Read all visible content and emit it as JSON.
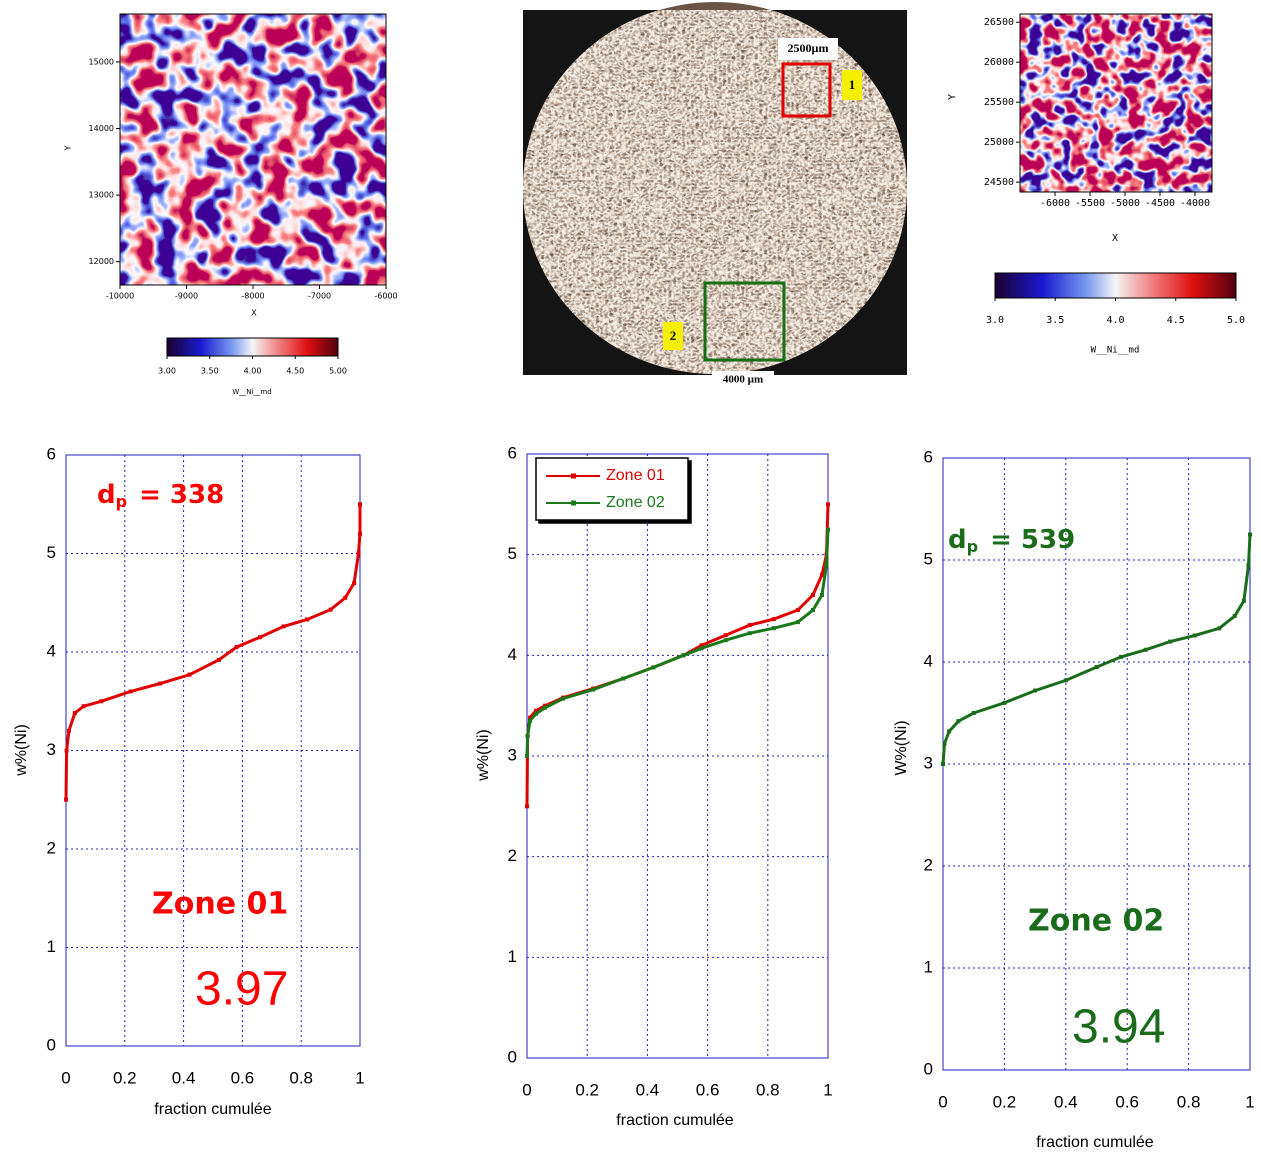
{
  "chart_data": [
    {
      "type": "contour",
      "xlabel": "X",
      "ylabel": "Y",
      "xlim": [
        -10000,
        -6000
      ],
      "xticks": [
        -10000,
        -9000,
        -8000,
        -7000,
        -6000
      ],
      "ylim": [
        11650,
        15720
      ],
      "yticks": [
        12000,
        13000,
        14000,
        15000
      ],
      "clim": [
        3,
        5
      ],
      "cticks": [
        {
          "value": 3,
          "label": "3.00"
        },
        {
          "value": 3.5,
          "label": "3.50"
        },
        {
          "value": 4,
          "label": "4.00"
        },
        {
          "value": 4.5,
          "label": "4.50"
        },
        {
          "value": 5,
          "label": "5.00"
        }
      ],
      "colorbar_label": "W__Ni__md"
    },
    {
      "type": "contour",
      "xlabel": "X",
      "ylabel": "Y",
      "xlim": [
        -6500,
        -3757
      ],
      "xticks": [
        -6000,
        -5500,
        -5000,
        -4500,
        -4000
      ],
      "ylim": [
        24376,
        26603
      ],
      "yticks": [
        24500,
        25000,
        25500,
        26000,
        26500
      ],
      "clim": [
        3,
        5
      ],
      "cticks": [
        {
          "value": 3,
          "label": "3.0"
        },
        3.5,
        {
          "value": 4,
          "label": "4.0"
        },
        4.5,
        {
          "value": 5,
          "label": "5.0"
        }
      ],
      "colorbar_label": "W__Ni__md"
    },
    {
      "type": "line",
      "xlabel": "fraction cumulée",
      "ylabel": "w%(Ni)",
      "xlim": [
        0,
        1
      ],
      "xticks": [
        0,
        0.2,
        0.4,
        0.6,
        0.8,
        1
      ],
      "ylim": [
        0,
        6
      ],
      "yticks": [
        0,
        1,
        2,
        3,
        4,
        5,
        6
      ],
      "grid": true,
      "series": [
        {
          "color": "#e00000",
          "x": [
            0,
            0.002,
            0.01,
            0.03,
            0.06,
            0.12,
            0.22,
            0.32,
            0.42,
            0.52,
            0.58,
            0.66,
            0.74,
            0.82,
            0.9,
            0.95,
            0.98,
            0.995,
            1,
            1
          ],
          "values": [
            2.5,
            3.0,
            3.2,
            3.38,
            3.45,
            3.5,
            3.6,
            3.68,
            3.77,
            3.92,
            4.05,
            4.15,
            4.26,
            4.33,
            4.43,
            4.55,
            4.7,
            5.0,
            5.2,
            5.5
          ]
        }
      ],
      "annotation": {
        "color": "#ff0000",
        "symbol": "d",
        "subscript": "p",
        "text": "= 338",
        "zone": "Zone 01",
        "mean": 3.97
      }
    },
    {
      "type": "line",
      "xlabel": "fraction cumulée",
      "ylabel": "w%(Ni)",
      "xlim": [
        0,
        1
      ],
      "xticks": [
        0,
        0.2,
        0.4,
        0.6,
        0.8,
        1
      ],
      "ylim": [
        0,
        6
      ],
      "yticks": [
        0,
        1,
        2,
        3,
        4,
        5,
        6
      ],
      "grid": true,
      "legend": "upper left",
      "series": [
        {
          "name": "Zone 01",
          "color": "#e00000",
          "x": [
            0,
            0.002,
            0.01,
            0.03,
            0.06,
            0.12,
            0.22,
            0.32,
            0.42,
            0.52,
            0.58,
            0.66,
            0.74,
            0.82,
            0.9,
            0.95,
            0.98,
            0.995,
            1
          ],
          "values": [
            2.5,
            3.2,
            3.38,
            3.45,
            3.5,
            3.58,
            3.67,
            3.77,
            3.88,
            4.0,
            4.1,
            4.2,
            4.3,
            4.36,
            4.45,
            4.6,
            4.8,
            5.0,
            5.5
          ]
        },
        {
          "name": "Zone 02",
          "color": "#1a7a1a",
          "x": [
            0,
            0.002,
            0.01,
            0.03,
            0.06,
            0.12,
            0.22,
            0.32,
            0.42,
            0.52,
            0.58,
            0.66,
            0.74,
            0.82,
            0.9,
            0.95,
            0.98,
            0.995,
            1
          ],
          "values": [
            3.0,
            3.2,
            3.35,
            3.42,
            3.48,
            3.57,
            3.66,
            3.77,
            3.88,
            4.0,
            4.07,
            4.15,
            4.22,
            4.27,
            4.33,
            4.45,
            4.6,
            4.9,
            5.25
          ]
        }
      ]
    },
    {
      "type": "line",
      "xlabel": "fraction cumulée",
      "ylabel": "W%(Ni)",
      "xlim": [
        0,
        1
      ],
      "xticks": [
        0,
        0.2,
        0.4,
        0.6,
        0.8,
        1
      ],
      "ylim": [
        0,
        6
      ],
      "yticks": [
        0,
        1,
        2,
        3,
        4,
        5,
        6
      ],
      "grid": true,
      "series": [
        {
          "color": "#1a6b1a",
          "x": [
            0,
            0.005,
            0.02,
            0.05,
            0.1,
            0.2,
            0.3,
            0.4,
            0.5,
            0.58,
            0.66,
            0.74,
            0.82,
            0.9,
            0.95,
            0.98,
            0.995,
            1
          ],
          "values": [
            3.0,
            3.2,
            3.32,
            3.42,
            3.5,
            3.6,
            3.72,
            3.82,
            3.95,
            4.05,
            4.12,
            4.2,
            4.26,
            4.33,
            4.45,
            4.6,
            4.95,
            5.25
          ]
        }
      ],
      "annotation": {
        "color": "#1a6b1a",
        "symbol": "d",
        "subscript": "p",
        "text": "= 539",
        "zone": "Zone 02",
        "mean": 3.94
      }
    }
  ],
  "figure": {
    "photo": {
      "scale_1": "2500µm",
      "scale_2": "4000 µm",
      "zone_1": "1",
      "zone_2": "2"
    }
  }
}
